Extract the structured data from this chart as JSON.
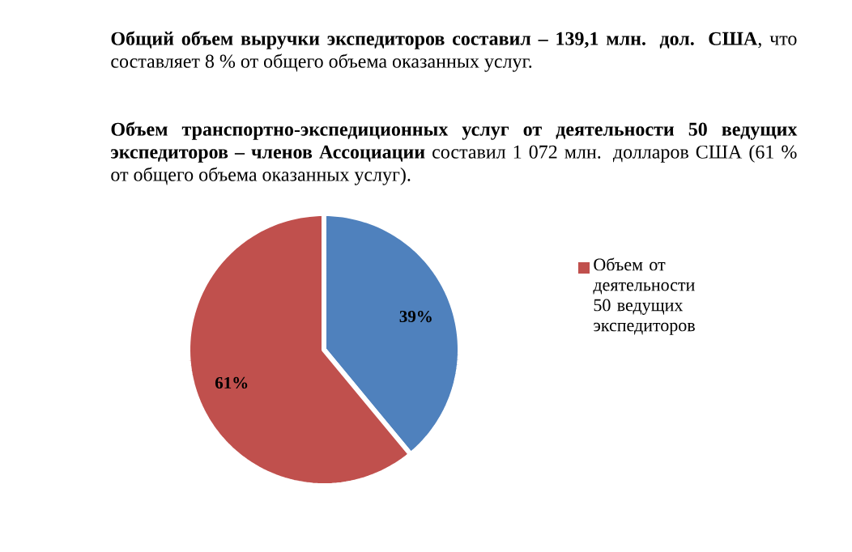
{
  "chart_data": {
    "type": "pie",
    "title": "**Общий объем выручки экспедиторов составил – 139,1 млн. дол. США**, что составляет 8 % от общего объема оказанных услуг.",
    "subtitle": "**Объем транспортно-экспедиционных услуг от деятельности 50 ведущих экспедиторов – членов Ассоциации** составил 1 072 млн. долларов США (61 % от общего объема оказанных услуг).",
    "categories": [
      null,
      "Объем от деятельности 50 ведущих экспедиторов"
    ],
    "values": [
      39,
      61
    ],
    "colors": [
      "#4f81bd",
      "#c0504d"
    ],
    "value_labels": [
      "39%",
      "61%"
    ],
    "legend": "right"
  }
}
